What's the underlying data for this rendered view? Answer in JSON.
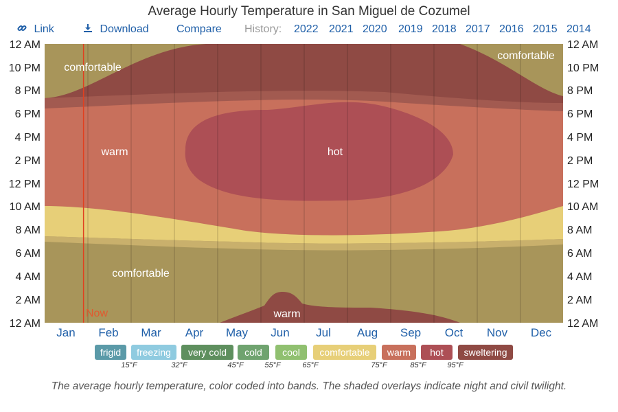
{
  "title": "Average Hourly Temperature in San Miguel de Cozumel",
  "toolbar": {
    "link_label": "Link",
    "download_label": "Download",
    "compare_label": "Compare",
    "history_label": "History:",
    "years": [
      "2022",
      "2021",
      "2020",
      "2019",
      "2018",
      "2017",
      "2016",
      "2015",
      "2014"
    ]
  },
  "chart_data": {
    "type": "heatmap",
    "title": "Average Hourly Temperature in San Miguel de Cozumel",
    "x_categories": [
      "Jan",
      "Feb",
      "Mar",
      "Apr",
      "May",
      "Jun",
      "Jul",
      "Aug",
      "Sep",
      "Oct",
      "Nov",
      "Dec"
    ],
    "y_ticks": [
      "12 AM",
      "10 PM",
      "8 PM",
      "6 PM",
      "4 PM",
      "2 PM",
      "12 PM",
      "10 AM",
      "8 AM",
      "6 AM",
      "4 AM",
      "2 AM",
      "12 AM"
    ],
    "now_label": "Now",
    "now_month": 0.9,
    "region_labels": {
      "comfortable_top_left": "comfortable",
      "comfortable_top_right": "comfortable",
      "warm_afternoon": "warm",
      "hot_summer": "hot",
      "comfortable_morning": "comfortable",
      "warm_night": "warm"
    },
    "band_colors": {
      "comfortable": "#a8955a",
      "comfortable_light": "#e7cf78",
      "warm": "#c8705c",
      "hot": "#ad4f55",
      "sweltering": "#8f4a44"
    }
  },
  "legend": {
    "bands": [
      {
        "label": "frigid",
        "color": "#5b9aa8"
      },
      {
        "label": "freezing",
        "color": "#8fcbe0"
      },
      {
        "label": "very cold",
        "color": "#5e8f5e"
      },
      {
        "label": "cold",
        "color": "#6fa36f"
      },
      {
        "label": "cool",
        "color": "#90c070"
      },
      {
        "label": "comfortable",
        "color": "#e7cf78"
      },
      {
        "label": "warm",
        "color": "#c8705c"
      },
      {
        "label": "hot",
        "color": "#ad4f55"
      },
      {
        "label": "sweltering",
        "color": "#8f4a44"
      }
    ],
    "ticks": [
      "15°F",
      "32°F",
      "45°F",
      "55°F",
      "65°F",
      "75°F",
      "85°F",
      "95°F"
    ]
  },
  "caption": "The average hourly temperature, color coded into bands. The shaded overlays indicate night and civil twilight."
}
